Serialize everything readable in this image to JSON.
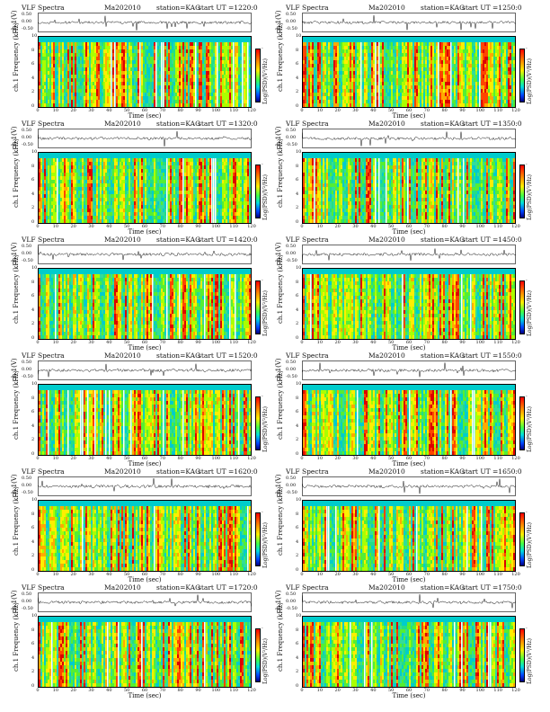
{
  "chart_data": [
    {
      "type": "heatmap",
      "title": "VLF Spectra",
      "date": "Ma202010",
      "station": "station=KAG",
      "start_label": "start  UT  =1220:0",
      "wave_label": "ch.1(V)",
      "wave_ticks": [
        "0.50",
        "0.00",
        "-0.50"
      ],
      "ylabel": "ch.1\nFrequency (kHz)",
      "y_ticks": [
        "10",
        "8",
        "6",
        "4",
        "2",
        "0"
      ],
      "ylim": [
        0,
        10
      ],
      "xlabel": "Time  (sec)",
      "x_ticks": [
        "0",
        "10",
        "20",
        "30",
        "40",
        "50",
        "60",
        "70",
        "80",
        "90",
        "100",
        "110",
        "120"
      ],
      "xlim": [
        0,
        120
      ],
      "colorbar_label": "Log(PSD)(V²/Hz)",
      "colorbar_ticks": [
        "-",
        "-"
      ]
    },
    {
      "type": "heatmap",
      "title": "VLF Spectra",
      "date": "Ma202010",
      "station": "station=KAG",
      "start_label": "start  UT  =1250:0",
      "wave_label": "ch.1(V)",
      "wave_ticks": [
        "0.50",
        "0.00",
        "-0.50"
      ],
      "ylabel": "ch.1\nFrequency (kHz)",
      "y_ticks": [
        "10",
        "8",
        "6",
        "4",
        "2",
        "0"
      ],
      "ylim": [
        0,
        10
      ],
      "xlabel": "Time  (sec)",
      "x_ticks": [
        "0",
        "10",
        "20",
        "30",
        "40",
        "50",
        "60",
        "70",
        "80",
        "90",
        "100",
        "110",
        "120"
      ],
      "xlim": [
        0,
        120
      ],
      "colorbar_label": "Log(PSD)(V²/Hz)",
      "colorbar_ticks": [
        "-",
        "-"
      ]
    },
    {
      "type": "heatmap",
      "title": "VLF Spectra",
      "date": "Ma202010",
      "station": "station=KAG",
      "start_label": "start  UT  =1320:0",
      "wave_label": "ch.1(V)",
      "wave_ticks": [
        "0.50",
        "0.00",
        "-0.50"
      ],
      "ylabel": "ch.1\nFrequency (kHz)",
      "y_ticks": [
        "10",
        "8",
        "6",
        "4",
        "2",
        "0"
      ],
      "ylim": [
        0,
        10
      ],
      "xlabel": "Time  (sec)",
      "x_ticks": [
        "0",
        "10",
        "20",
        "30",
        "40",
        "50",
        "60",
        "70",
        "80",
        "90",
        "100",
        "110",
        "120"
      ],
      "xlim": [
        0,
        120
      ],
      "colorbar_label": "Log(PSD)(V²/Hz)",
      "colorbar_ticks": [
        "-",
        "-"
      ]
    },
    {
      "type": "heatmap",
      "title": "VLF Spectra",
      "date": "Ma202010",
      "station": "station=KAG",
      "start_label": "start  UT  =1350:0",
      "wave_label": "ch.1(V)",
      "wave_ticks": [
        "0.50",
        "0.00",
        "-0.50"
      ],
      "ylabel": "ch.1\nFrequency (kHz)",
      "y_ticks": [
        "10",
        "8",
        "6",
        "4",
        "2",
        "0"
      ],
      "ylim": [
        0,
        10
      ],
      "xlabel": "Time  (sec)",
      "x_ticks": [
        "0",
        "10",
        "20",
        "30",
        "40",
        "50",
        "60",
        "70",
        "80",
        "90",
        "100",
        "110",
        "120"
      ],
      "xlim": [
        0,
        120
      ],
      "colorbar_label": "Log(PSD)(V²/Hz)",
      "colorbar_ticks": [
        "-",
        "-"
      ]
    },
    {
      "type": "heatmap",
      "title": "VLF Spectra",
      "date": "Ma202010",
      "station": "station=KAG",
      "start_label": "start  UT  =1420:0",
      "wave_label": "ch.1(V)",
      "wave_ticks": [
        "0.50",
        "0.00",
        "-0.50"
      ],
      "ylabel": "ch.1\nFrequency (kHz)",
      "y_ticks": [
        "10",
        "8",
        "6",
        "4",
        "2",
        "0"
      ],
      "ylim": [
        0,
        10
      ],
      "xlabel": "Time  (sec)",
      "x_ticks": [
        "0",
        "10",
        "20",
        "30",
        "40",
        "50",
        "60",
        "70",
        "80",
        "90",
        "100",
        "110",
        "120"
      ],
      "xlim": [
        0,
        120
      ],
      "colorbar_label": "Log(PSD)(V²/Hz)",
      "colorbar_ticks": [
        "-",
        "-"
      ]
    },
    {
      "type": "heatmap",
      "title": "VLF Spectra",
      "date": "Ma202010",
      "station": "station=KAG",
      "start_label": "start  UT  =1450:0",
      "wave_label": "ch.1(V)",
      "wave_ticks": [
        "0.50",
        "0.00",
        "-0.50"
      ],
      "ylabel": "ch.1\nFrequency (kHz)",
      "y_ticks": [
        "10",
        "8",
        "6",
        "4",
        "2",
        "0"
      ],
      "ylim": [
        0,
        10
      ],
      "xlabel": "Time  (sec)",
      "x_ticks": [
        "0",
        "10",
        "20",
        "30",
        "40",
        "50",
        "60",
        "70",
        "80",
        "90",
        "100",
        "110",
        "120"
      ],
      "xlim": [
        0,
        120
      ],
      "colorbar_label": "Log(PSD)(V²/Hz)",
      "colorbar_ticks": [
        "-",
        "-"
      ]
    },
    {
      "type": "heatmap",
      "title": "VLF Spectra",
      "date": "Ma202010",
      "station": "station=KAG",
      "start_label": "start  UT  =1520:0",
      "wave_label": "ch.1(V)",
      "wave_ticks": [
        "0.50",
        "0.00",
        "-0.50"
      ],
      "ylabel": "ch.1\nFrequency (kHz)",
      "y_ticks": [
        "10",
        "8",
        "6",
        "4",
        "2",
        "0"
      ],
      "ylim": [
        0,
        10
      ],
      "xlabel": "Time  (sec)",
      "x_ticks": [
        "0",
        "10",
        "20",
        "30",
        "40",
        "50",
        "60",
        "70",
        "80",
        "90",
        "100",
        "110",
        "120"
      ],
      "xlim": [
        0,
        120
      ],
      "colorbar_label": "Log(PSD)(V²/Hz)",
      "colorbar_ticks": [
        "-",
        "-"
      ]
    },
    {
      "type": "heatmap",
      "title": "VLF Spectra",
      "date": "Ma202010",
      "station": "station=KAG",
      "start_label": "start  UT  =1550:0",
      "wave_label": "ch.1(V)",
      "wave_ticks": [
        "0.50",
        "0.00",
        "-0.50"
      ],
      "ylabel": "ch.1\nFrequency (kHz)",
      "y_ticks": [
        "10",
        "8",
        "6",
        "4",
        "2",
        "0"
      ],
      "ylim": [
        0,
        10
      ],
      "xlabel": "Time  (sec)",
      "x_ticks": [
        "0",
        "10",
        "20",
        "30",
        "40",
        "50",
        "60",
        "70",
        "80",
        "90",
        "100",
        "110",
        "120"
      ],
      "xlim": [
        0,
        120
      ],
      "colorbar_label": "Log(PSD)(V²/Hz)",
      "colorbar_ticks": [
        "-",
        "-"
      ]
    },
    {
      "type": "heatmap",
      "title": "VLF Spectra",
      "date": "Ma202010",
      "station": "station=KAG",
      "start_label": "start  UT  =1620:0",
      "wave_label": "ch.1(V)",
      "wave_ticks": [
        "0.50",
        "0.00",
        "-0.50"
      ],
      "ylabel": "ch.1\nFrequency (kHz)",
      "y_ticks": [
        "10",
        "8",
        "6",
        "4",
        "2",
        "0"
      ],
      "ylim": [
        0,
        10
      ],
      "xlabel": "Time  (sec)",
      "x_ticks": [
        "0",
        "10",
        "20",
        "30",
        "40",
        "50",
        "60",
        "70",
        "80",
        "90",
        "100",
        "110",
        "120"
      ],
      "xlim": [
        0,
        120
      ],
      "colorbar_label": "Log(PSD)(V²/Hz)",
      "colorbar_ticks": [
        "-",
        "-"
      ]
    },
    {
      "type": "heatmap",
      "title": "VLF Spectra",
      "date": "Ma202010",
      "station": "station=KAG",
      "start_label": "start  UT  =1650:0",
      "wave_label": "ch.1(V)",
      "wave_ticks": [
        "0.50",
        "0.00",
        "-0.50"
      ],
      "ylabel": "ch.1\nFrequency (kHz)",
      "y_ticks": [
        "10",
        "8",
        "6",
        "4",
        "2",
        "0"
      ],
      "ylim": [
        0,
        10
      ],
      "xlabel": "Time  (sec)",
      "x_ticks": [
        "0",
        "10",
        "20",
        "30",
        "40",
        "50",
        "60",
        "70",
        "80",
        "90",
        "100",
        "110",
        "120"
      ],
      "xlim": [
        0,
        120
      ],
      "colorbar_label": "Log(PSD)(V²/Hz)",
      "colorbar_ticks": [
        "-",
        "-"
      ]
    },
    {
      "type": "heatmap",
      "title": "VLF Spectra",
      "date": "Ma202010",
      "station": "station=KAG",
      "start_label": "start  UT  =1720:0",
      "wave_label": "ch.1(V)",
      "wave_ticks": [
        "0.50",
        "0.00",
        "-0.50"
      ],
      "ylabel": "ch.1\nFrequency (kHz)",
      "y_ticks": [
        "10",
        "8",
        "6",
        "4",
        "2",
        "0"
      ],
      "ylim": [
        0,
        10
      ],
      "xlabel": "Time  (sec)",
      "x_ticks": [
        "0",
        "10",
        "20",
        "30",
        "40",
        "50",
        "60",
        "70",
        "80",
        "90",
        "100",
        "110",
        "120"
      ],
      "xlim": [
        0,
        120
      ],
      "colorbar_label": "Log(PSD)(V²/Hz)",
      "colorbar_ticks": [
        "-",
        "-"
      ]
    },
    {
      "type": "heatmap",
      "title": "VLF Spectra",
      "date": "Ma202010",
      "station": "station=KAG",
      "start_label": "start  UT  =1750:0",
      "wave_label": "ch.1(V)",
      "wave_ticks": [
        "0.50",
        "0.00",
        "-0.50"
      ],
      "ylabel": "ch.1\nFrequency (kHz)",
      "y_ticks": [
        "10",
        "8",
        "6",
        "4",
        "2",
        "0"
      ],
      "ylim": [
        0,
        10
      ],
      "xlabel": "Time  (sec)",
      "x_ticks": [
        "0",
        "10",
        "20",
        "30",
        "40",
        "50",
        "60",
        "70",
        "80",
        "90",
        "100",
        "110",
        "120"
      ],
      "xlim": [
        0,
        120
      ],
      "colorbar_label": "Log(PSD)(V²/Hz)",
      "colorbar_ticks": [
        "-",
        "-"
      ]
    }
  ]
}
